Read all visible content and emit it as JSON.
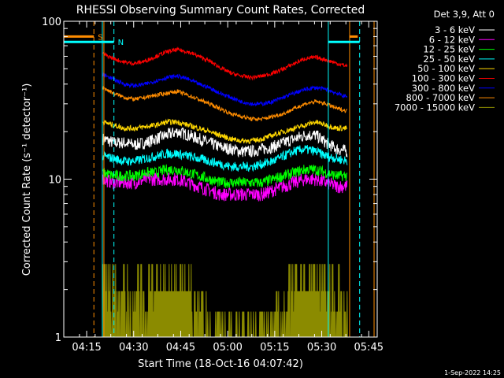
{
  "chart_data": {
    "type": "line",
    "title": "RHESSI Observing Summary Count Rates, Corrected",
    "xlabel": "Start Time (18-Oct-16 04:07:42)",
    "ylabel": "Corrected Count Rate (s⁻¹ detector⁻¹)",
    "yscale": "log",
    "ylim": [
      1,
      100
    ],
    "xlim_minutes": [
      0,
      100
    ],
    "x_ticks": [
      "04:15",
      "04:30",
      "04:45",
      "05:00",
      "05:15",
      "05:30",
      "05:45"
    ],
    "x_tick_minutes": [
      7.3,
      22.3,
      37.3,
      52.3,
      67.3,
      82.3,
      97.3
    ],
    "y_ticks": [
      "1",
      "10",
      "100"
    ],
    "y_tick_values": [
      1,
      10,
      100
    ],
    "legend_header": "Det 3,9, Att 0",
    "legend_location": "outside right",
    "data_range_minutes": [
      12.5,
      90.5
    ],
    "series": [
      {
        "name": "3 - 6 keV",
        "color": "#ffffff",
        "profile": [
          18,
          17,
          17,
          16.5,
          17,
          18,
          19,
          20,
          19,
          18,
          17,
          16,
          15.5,
          15,
          15,
          15.5,
          16,
          17,
          18,
          19,
          19,
          17,
          15.5,
          15
        ],
        "noise": 0.09
      },
      {
        "name": "6 - 12 keV",
        "color": "#ff00ff",
        "profile": [
          10,
          9.5,
          9.5,
          9.5,
          10,
          10,
          10,
          10,
          9.5,
          9,
          8.5,
          8,
          8,
          8,
          8,
          8,
          8.5,
          9,
          9.5,
          10,
          10,
          9.5,
          9,
          9
        ],
        "noise": 0.1
      },
      {
        "name": "12 - 25 keV",
        "color": "#00ff00",
        "profile": [
          11,
          10.5,
          10.5,
          10.5,
          11,
          11,
          11.5,
          11.5,
          11,
          10.5,
          10,
          9.5,
          9.5,
          9.5,
          9.5,
          9.5,
          10,
          10.5,
          11,
          11.5,
          11.5,
          11,
          10.5,
          10.5
        ],
        "noise": 0.08
      },
      {
        "name": "25 - 50 keV",
        "color": "#00ffff",
        "profile": [
          14,
          13.5,
          13,
          13,
          13.5,
          14,
          14.5,
          14.5,
          14,
          13.5,
          13,
          12.5,
          12,
          12,
          12,
          12.5,
          13,
          14,
          15,
          15.5,
          15,
          14,
          13.5,
          13
        ],
        "noise": 0.07
      },
      {
        "name": "50 - 100 keV",
        "color": "#ffd700",
        "profile": [
          23,
          22,
          21,
          21,
          21.5,
          22,
          23,
          23,
          22,
          21,
          20,
          19,
          18,
          17.5,
          17.5,
          18,
          19,
          20,
          21,
          22,
          23,
          22,
          21,
          21
        ],
        "noise": 0.04
      },
      {
        "name": "100 - 300 keV",
        "color": "#ff0000",
        "profile": [
          62,
          58,
          55,
          54,
          56,
          60,
          64,
          66,
          64,
          60,
          56,
          51,
          47,
          45,
          44,
          45,
          47,
          50,
          54,
          58,
          59,
          57,
          54,
          52
        ],
        "noise": 0.03
      },
      {
        "name": "300 - 800 keV",
        "color": "#0000ff",
        "profile": [
          46,
          43,
          40,
          39,
          40,
          42,
          44,
          45,
          43,
          40,
          38,
          35,
          33,
          31,
          30,
          30,
          31,
          33,
          35,
          37,
          38,
          37,
          35,
          33
        ],
        "noise": 0.03
      },
      {
        "name": "800 - 7000 keV",
        "color": "#ff8c00",
        "profile": [
          38,
          35,
          33,
          32,
          33,
          34,
          35,
          36,
          34,
          32,
          30,
          28,
          26,
          25,
          24,
          24,
          25,
          26,
          28,
          30,
          31,
          30,
          28,
          27
        ],
        "noise": 0.03
      },
      {
        "name": "7000 - 15000 keV",
        "color": "#8b8b00",
        "profile": [
          1.5,
          1.5,
          1.5,
          1.5,
          1.5,
          1.6,
          1.7,
          1.8,
          1.6,
          1.4,
          1.2,
          1.1,
          1,
          1,
          1,
          1,
          1.1,
          1.3,
          1.6,
          1.8,
          1.8,
          1.6,
          1.4,
          1.3
        ],
        "noise": 0
      }
    ],
    "markers": [
      {
        "type": "vline",
        "minute": 12.3,
        "color": "#00ffff",
        "style": "solid"
      },
      {
        "type": "vline",
        "minute": 84.4,
        "color": "#00ffff",
        "style": "solid"
      },
      {
        "type": "vline",
        "minute": 16.0,
        "color": "#00ffff",
        "style": "dashed"
      },
      {
        "type": "vline",
        "minute": 94.4,
        "color": "#00ffff",
        "style": "dashed"
      },
      {
        "type": "vline",
        "minute": 9.6,
        "color": "#ff8c00",
        "style": "dashed"
      },
      {
        "type": "vline",
        "minute": 12.8,
        "color": "#ff8c00",
        "style": "solid"
      },
      {
        "type": "vline",
        "minute": 91.2,
        "color": "#ff8c00",
        "style": "solid"
      },
      {
        "type": "vline",
        "minute": 99.0,
        "color": "#ff8c00",
        "style": "solid"
      }
    ],
    "bars": [
      {
        "label": "S",
        "color": "#ff8c00",
        "ranges": [
          [
            0,
            9.6
          ],
          [
            91.2,
            93.8
          ]
        ],
        "level": 80
      },
      {
        "label": "N",
        "color": "#00ffff",
        "ranges": [
          [
            0,
            16.0
          ],
          [
            84.4,
            94.4
          ]
        ],
        "level": 74
      }
    ]
  },
  "footer": {
    "date": "1-Sep-2022 14:25"
  }
}
